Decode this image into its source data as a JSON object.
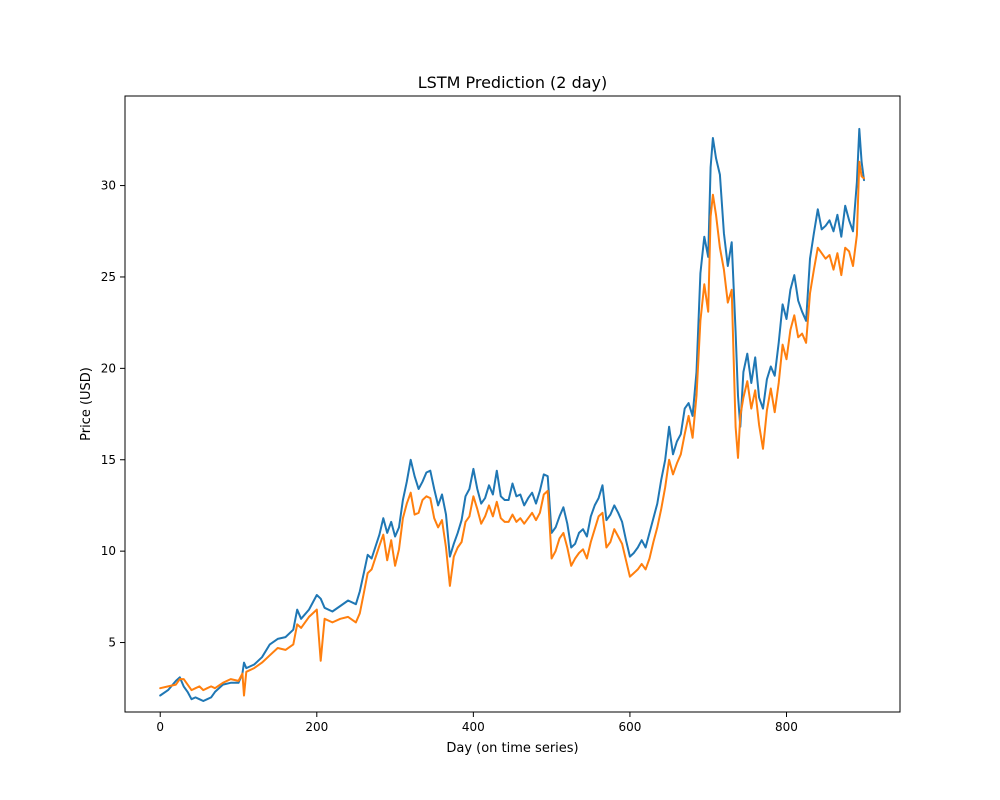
{
  "chart_data": {
    "type": "line",
    "title": "LSTM Prediction (2 day)",
    "xlabel": "Day (on time series)",
    "ylabel": "Price (USD)",
    "xlim": [
      -45,
      945
    ],
    "ylim": [
      1.2,
      34.9
    ],
    "xticks": [
      0,
      200,
      400,
      600,
      800
    ],
    "xtick_labels": [
      "0",
      "200",
      "400",
      "600",
      "800"
    ],
    "yticks": [
      5,
      10,
      15,
      20,
      25,
      30
    ],
    "ytick_labels": [
      "5",
      "10",
      "15",
      "20",
      "25",
      "30"
    ],
    "grid": false,
    "series": [
      {
        "color": "#1f77b4",
        "x": [
          0,
          10,
          20,
          25,
          30,
          35,
          40,
          45,
          50,
          55,
          60,
          65,
          70,
          80,
          90,
          100,
          105,
          107,
          110,
          120,
          130,
          140,
          150,
          160,
          170,
          175,
          180,
          190,
          200,
          205,
          210,
          220,
          230,
          240,
          250,
          255,
          260,
          265,
          270,
          280,
          285,
          290,
          295,
          300,
          305,
          310,
          315,
          320,
          325,
          330,
          335,
          340,
          345,
          350,
          355,
          360,
          365,
          370,
          375,
          380,
          385,
          390,
          395,
          400,
          405,
          410,
          415,
          420,
          425,
          430,
          435,
          440,
          445,
          450,
          455,
          460,
          465,
          470,
          475,
          480,
          485,
          490,
          495,
          500,
          505,
          510,
          515,
          520,
          525,
          530,
          535,
          540,
          545,
          550,
          555,
          560,
          565,
          570,
          575,
          580,
          585,
          590,
          595,
          600,
          605,
          610,
          615,
          620,
          625,
          630,
          635,
          640,
          645,
          650,
          655,
          660,
          665,
          670,
          675,
          680,
          685,
          690,
          695,
          700,
          703,
          706,
          710,
          715,
          720,
          725,
          730,
          735,
          738,
          741,
          745,
          750,
          755,
          760,
          765,
          770,
          775,
          780,
          785,
          790,
          795,
          800,
          805,
          810,
          815,
          820,
          825,
          830,
          835,
          840,
          845,
          850,
          855,
          860,
          865,
          870,
          875,
          880,
          885,
          890,
          893,
          896,
          899
        ],
        "y": [
          2.1,
          2.4,
          2.9,
          3.1,
          2.6,
          2.3,
          1.9,
          2.0,
          1.9,
          1.8,
          1.9,
          2.0,
          2.3,
          2.7,
          2.8,
          2.8,
          3.3,
          3.9,
          3.6,
          3.8,
          4.2,
          4.9,
          5.2,
          5.3,
          5.7,
          6.8,
          6.3,
          6.8,
          7.6,
          7.4,
          6.9,
          6.7,
          7.0,
          7.3,
          7.1,
          7.8,
          8.8,
          9.8,
          9.6,
          10.9,
          11.8,
          11.0,
          11.6,
          10.8,
          11.3,
          12.8,
          13.8,
          15.0,
          14.1,
          13.4,
          13.8,
          14.3,
          14.4,
          13.4,
          12.5,
          13.1,
          12.0,
          9.7,
          10.4,
          11.0,
          11.7,
          13.0,
          13.4,
          14.5,
          13.4,
          12.6,
          12.9,
          13.6,
          13.1,
          14.4,
          13.0,
          12.8,
          12.8,
          13.7,
          13.0,
          13.1,
          12.5,
          12.9,
          13.2,
          12.6,
          13.3,
          14.2,
          14.1,
          11.0,
          11.3,
          11.9,
          12.4,
          11.5,
          10.2,
          10.4,
          11.0,
          11.2,
          10.8,
          11.9,
          12.5,
          12.9,
          13.6,
          11.7,
          12.0,
          12.5,
          12.1,
          11.6,
          10.6,
          9.7,
          9.9,
          10.2,
          10.6,
          10.2,
          11.0,
          11.8,
          12.6,
          13.9,
          15.0,
          16.8,
          15.3,
          16.0,
          16.4,
          17.8,
          18.1,
          17.4,
          19.8,
          25.2,
          27.2,
          26.1,
          31.0,
          32.6,
          31.5,
          30.6,
          27.4,
          25.6,
          26.9,
          22.0,
          18.5,
          16.8,
          19.8,
          20.8,
          19.2,
          20.6,
          18.4,
          17.8,
          19.4,
          20.1,
          19.6,
          21.4,
          23.5,
          22.7,
          24.3,
          25.1,
          23.7,
          23.1,
          22.6,
          26.0,
          27.4,
          28.7,
          27.6,
          27.8,
          28.1,
          27.5,
          28.4,
          27.2,
          28.9,
          28.1,
          27.5,
          30.2,
          33.1,
          31.3,
          30.3
        ]
      },
      {
        "color": "#ff7f0e",
        "x": [
          0,
          10,
          20,
          25,
          30,
          35,
          40,
          45,
          50,
          55,
          60,
          65,
          70,
          80,
          90,
          100,
          105,
          107,
          110,
          120,
          130,
          140,
          150,
          160,
          170,
          175,
          180,
          190,
          200,
          205,
          210,
          220,
          230,
          240,
          250,
          255,
          260,
          265,
          270,
          280,
          285,
          290,
          295,
          300,
          305,
          310,
          315,
          320,
          325,
          330,
          335,
          340,
          345,
          350,
          355,
          360,
          365,
          370,
          375,
          380,
          385,
          390,
          395,
          400,
          405,
          410,
          415,
          420,
          425,
          430,
          435,
          440,
          445,
          450,
          455,
          460,
          465,
          470,
          475,
          480,
          485,
          490,
          495,
          500,
          505,
          510,
          515,
          520,
          525,
          530,
          535,
          540,
          545,
          550,
          555,
          560,
          565,
          570,
          575,
          580,
          585,
          590,
          595,
          600,
          605,
          610,
          615,
          620,
          625,
          630,
          635,
          640,
          645,
          650,
          655,
          660,
          665,
          670,
          675,
          680,
          685,
          690,
          695,
          700,
          703,
          706,
          710,
          715,
          720,
          725,
          730,
          735,
          738,
          741,
          745,
          750,
          755,
          760,
          765,
          770,
          775,
          780,
          785,
          790,
          795,
          800,
          805,
          810,
          815,
          820,
          825,
          830,
          835,
          840,
          845,
          850,
          855,
          860,
          865,
          870,
          875,
          880,
          885,
          890,
          893,
          896,
          899
        ],
        "y": [
          2.5,
          2.6,
          2.7,
          3.0,
          3.0,
          2.7,
          2.4,
          2.5,
          2.6,
          2.4,
          2.5,
          2.6,
          2.5,
          2.8,
          3.0,
          2.9,
          3.3,
          2.1,
          3.4,
          3.6,
          3.9,
          4.3,
          4.7,
          4.6,
          4.9,
          6.0,
          5.8,
          6.4,
          6.8,
          4.0,
          6.3,
          6.1,
          6.3,
          6.4,
          6.1,
          6.6,
          7.7,
          8.8,
          9.0,
          10.3,
          10.9,
          9.5,
          10.6,
          9.2,
          10.1,
          11.8,
          12.6,
          13.2,
          12.0,
          12.1,
          12.8,
          13.0,
          12.9,
          11.8,
          11.3,
          11.7,
          10.2,
          8.1,
          9.7,
          10.2,
          10.5,
          11.6,
          11.9,
          13.0,
          12.3,
          11.5,
          11.9,
          12.5,
          11.9,
          12.7,
          11.8,
          11.6,
          11.6,
          12.0,
          11.6,
          11.8,
          11.5,
          11.8,
          12.1,
          11.7,
          12.1,
          13.1,
          13.3,
          9.6,
          10.0,
          10.7,
          11.0,
          10.2,
          9.2,
          9.6,
          9.9,
          10.1,
          9.6,
          10.5,
          11.2,
          11.9,
          12.1,
          10.2,
          10.5,
          11.2,
          10.8,
          10.4,
          9.5,
          8.6,
          8.8,
          9.0,
          9.3,
          9.0,
          9.6,
          10.5,
          11.3,
          12.3,
          13.5,
          15.0,
          14.2,
          14.8,
          15.3,
          16.4,
          17.4,
          16.2,
          18.5,
          22.6,
          24.6,
          23.1,
          28.3,
          29.5,
          28.4,
          26.6,
          25.4,
          23.6,
          24.3,
          16.8,
          15.1,
          17.4,
          18.4,
          19.3,
          17.8,
          18.8,
          16.9,
          15.6,
          17.7,
          18.9,
          17.6,
          19.2,
          21.3,
          20.5,
          22.1,
          22.9,
          21.7,
          21.9,
          21.4,
          24.1,
          25.4,
          26.6,
          26.3,
          26.0,
          26.2,
          25.4,
          26.3,
          25.1,
          26.6,
          26.4,
          25.6,
          27.3,
          31.3,
          30.5,
          30.4
        ]
      }
    ]
  }
}
